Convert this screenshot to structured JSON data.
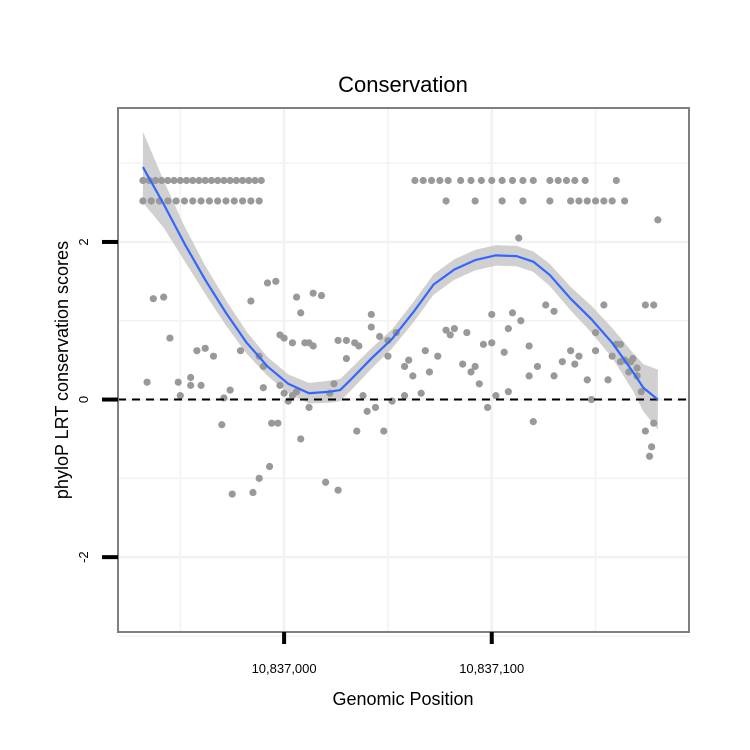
{
  "chart_data": {
    "type": "scatter",
    "title": "Conservation",
    "xlabel": "Genomic Position",
    "ylabel": "phyloP LRT conservation scores",
    "xlim": [
      10836920,
      10837195
    ],
    "ylim": [
      -2.95,
      3.7
    ],
    "x_ticks": [
      {
        "value": 10837000,
        "label": "10,837,000"
      },
      {
        "value": 10837100,
        "label": "10,837,100"
      }
    ],
    "y_ticks": [
      {
        "value": -2,
        "label": "-2"
      },
      {
        "value": 0,
        "label": "0"
      },
      {
        "value": 2,
        "label": "2"
      }
    ],
    "grid": true,
    "reference_line": {
      "y": 0,
      "style": "dashed"
    },
    "colors": {
      "points": "#999999",
      "smooth": "#3366ff",
      "band": "#c8c8c8",
      "grid": "#f2f2f2",
      "panel_border": "#7f7f7f"
    },
    "smooth": {
      "x": [
        10836932,
        10836942,
        10836952,
        10836962,
        10836972,
        10836982,
        10836992,
        10837002,
        10837012,
        10837022,
        10837027,
        10837032,
        10837042,
        10837052,
        10837062,
        10837072,
        10837082,
        10837092,
        10837102,
        10837112,
        10837120,
        10837128,
        10837138,
        10837148,
        10837158,
        10837168,
        10837173,
        10837180
      ],
      "y": [
        2.95,
        2.48,
        1.98,
        1.52,
        1.1,
        0.72,
        0.42,
        0.2,
        0.08,
        0.1,
        0.12,
        0.25,
        0.52,
        0.77,
        1.1,
        1.46,
        1.65,
        1.77,
        1.83,
        1.82,
        1.75,
        1.58,
        1.28,
        1.02,
        0.72,
        0.35,
        0.15,
        0.0
      ],
      "band_halfwidth": [
        0.45,
        0.3,
        0.22,
        0.18,
        0.16,
        0.14,
        0.12,
        0.12,
        0.13,
        0.14,
        0.14,
        0.14,
        0.13,
        0.12,
        0.13,
        0.13,
        0.13,
        0.13,
        0.13,
        0.13,
        0.13,
        0.14,
        0.15,
        0.17,
        0.19,
        0.24,
        0.3,
        0.38
      ]
    },
    "points": {
      "x": [
        10836932,
        10836935,
        10836938,
        10836941,
        10836944,
        10836947,
        10836950,
        10836953,
        10836956,
        10836959,
        10836962,
        10836965,
        10836968,
        10836971,
        10836974,
        10836977,
        10836980,
        10836983,
        10836986,
        10836989,
        10836932,
        10836936,
        10836940,
        10836944,
        10836948,
        10836952,
        10836956,
        10836960,
        10836964,
        10836968,
        10836972,
        10836976,
        10836980,
        10836984,
        10836988,
        10837063,
        10837067,
        10837071,
        10837075,
        10837079,
        10837085,
        10837090,
        10837095,
        10837100,
        10837105,
        10837110,
        10837115,
        10837120,
        10837128,
        10837132,
        10837136,
        10837140,
        10837145,
        10837160,
        10837078,
        10837092,
        10837105,
        10837115,
        10837128,
        10837138,
        10837142,
        10837146,
        10837150,
        10837154,
        10837158,
        10837164,
        10836934,
        10836937,
        10836942,
        10836945,
        10836949,
        10836955,
        10836958,
        10836962,
        10836966,
        10836971,
        10836974,
        10836979,
        10836984,
        10836988,
        10836992,
        10836996,
        10837000,
        10837004,
        10837008,
        10837012,
        10836990,
        10836994,
        10836998,
        10837002,
        10837006,
        10837010,
        10837014,
        10837018,
        10837022,
        10837026,
        10837030,
        10837034,
        10837038,
        10837042,
        10837046,
        10837050,
        10837054,
        10837058,
        10837062,
        10837066,
        10837070,
        10837074,
        10837078,
        10837082,
        10837086,
        10837090,
        10837094,
        10837098,
        10837102,
        10837106,
        10837110,
        10837114,
        10837118,
        10837122,
        10837126,
        10837130,
        10837134,
        10837138,
        10837142,
        10837146,
        10837150,
        10837154,
        10837158,
        10837162,
        10837166,
        10837170,
        10837174,
        10837178,
        10836990,
        10836998,
        10837006,
        10837014,
        10837024,
        10837030,
        10837036,
        10837042,
        10837050,
        10837060,
        10837068,
        10837080,
        10837092,
        10837100,
        10837108,
        10837118,
        10837130,
        10837140,
        10837150,
        10837160,
        10837170,
        10837174,
        10837177,
        10837180,
        10837176,
        10837168,
        10837164,
        10837172,
        10837178,
        10837167,
        10837162,
        10837156,
        10837148,
        10837120,
        10837113,
        10837108,
        10837100,
        10837096,
        10837088,
        10837058,
        10837052,
        10837048,
        10837044,
        10837040,
        10837035,
        10837026,
        10837020,
        10837012,
        10837008,
        10837004,
        10837000,
        10836997,
        10836993,
        10836988,
        10836985,
        10836975,
        10836970,
        10836960,
        10836955,
        10836950
      ],
      "y": [
        2.78,
        2.78,
        2.78,
        2.78,
        2.78,
        2.78,
        2.78,
        2.78,
        2.78,
        2.78,
        2.78,
        2.78,
        2.78,
        2.78,
        2.78,
        2.78,
        2.78,
        2.78,
        2.78,
        2.78,
        2.52,
        2.52,
        2.52,
        2.52,
        2.52,
        2.52,
        2.52,
        2.52,
        2.52,
        2.52,
        2.52,
        2.52,
        2.52,
        2.52,
        2.52,
        2.78,
        2.78,
        2.78,
        2.78,
        2.78,
        2.78,
        2.78,
        2.78,
        2.78,
        2.78,
        2.78,
        2.78,
        2.78,
        2.78,
        2.78,
        2.78,
        2.78,
        2.78,
        2.78,
        2.52,
        2.52,
        2.52,
        2.52,
        2.52,
        2.52,
        2.52,
        2.52,
        2.52,
        2.52,
        2.52,
        2.52,
        0.22,
        1.28,
        1.3,
        0.78,
        0.22,
        0.18,
        0.62,
        0.65,
        0.55,
        0.02,
        0.12,
        0.62,
        1.25,
        0.55,
        1.48,
        1.5,
        0.78,
        0.72,
        1.1,
        0.72,
        0.15,
        -0.3,
        0.18,
        -0.02,
        0.1,
        0.72,
        1.35,
        1.32,
        0.08,
        0.75,
        0.75,
        0.72,
        0.05,
        1.08,
        0.8,
        0.75,
        0.85,
        0.05,
        0.3,
        0.08,
        0.35,
        0.55,
        0.88,
        0.9,
        0.45,
        0.35,
        0.2,
        -0.1,
        0.05,
        0.6,
        1.1,
        1.0,
        0.3,
        0.42,
        1.2,
        1.12,
        0.48,
        0.62,
        0.55,
        0.25,
        0.62,
        1.2,
        0.55,
        0.48,
        0.35,
        0.3,
        1.2,
        1.2,
        0.42,
        0.82,
        1.3,
        0.68,
        0.2,
        0.52,
        0.68,
        0.92,
        0.55,
        0.5,
        0.62,
        0.82,
        0.42,
        0.72,
        0.1,
        0.68,
        0.3,
        0.45,
        0.85,
        0.7,
        0.4,
        -0.4,
        -0.6,
        2.28,
        -0.72,
        0.52,
        0.5,
        0.1,
        -0.3,
        0.48,
        0.7,
        0.25,
        0.0,
        -0.28,
        2.05,
        0.9,
        1.08,
        0.7,
        0.85,
        0.42,
        -0.02,
        -0.4,
        -0.1,
        -0.15,
        -0.4,
        -1.15,
        -1.05,
        -0.1,
        -0.5,
        0.05,
        0.08,
        -0.3,
        -0.85,
        -1.0,
        -1.18,
        -1.2,
        -0.32,
        0.18,
        0.28,
        0.05
      ]
    }
  }
}
